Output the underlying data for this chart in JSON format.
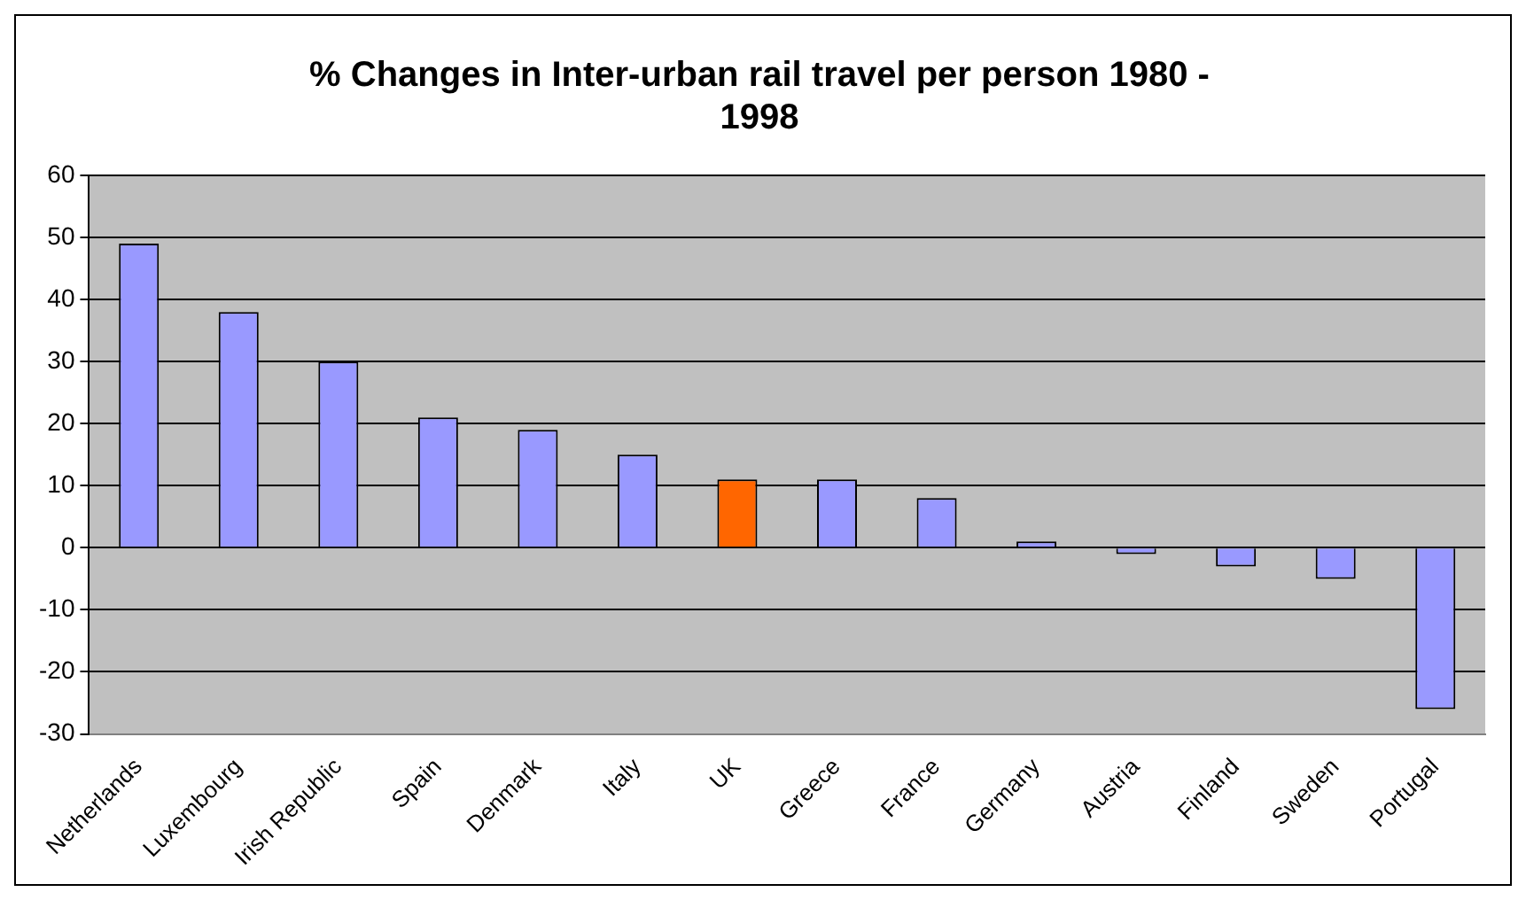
{
  "chart_data": {
    "type": "bar",
    "title": "% Changes in Inter-urban rail travel per person 1980 - 1998",
    "categories": [
      "Netherlands",
      "Luxembourg",
      "Irish Republic",
      "Spain",
      "Denmark",
      "Italy",
      "UK",
      "Greece",
      "France",
      "Germany",
      "Austria",
      "Finland",
      "Sweden",
      "Portugal"
    ],
    "values": [
      49,
      38,
      30,
      21,
      19,
      15,
      11,
      11,
      8,
      1,
      -1,
      -3,
      -5,
      -26
    ],
    "colors": [
      "#9999ff",
      "#9999ff",
      "#9999ff",
      "#9999ff",
      "#9999ff",
      "#9999ff",
      "#ff6600",
      "#9999ff",
      "#9999ff",
      "#9999ff",
      "#9999ff",
      "#9999ff",
      "#9999ff",
      "#9999ff"
    ],
    "ylim": [
      -30,
      60
    ],
    "yticks": [
      -30,
      -20,
      -10,
      0,
      10,
      20,
      30,
      40,
      50,
      60
    ],
    "grid": "y",
    "legend": false
  }
}
